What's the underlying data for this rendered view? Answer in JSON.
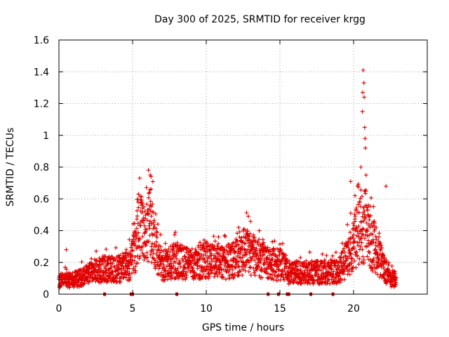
{
  "chart_data": {
    "type": "scatter",
    "title": "Day 300 of 2025, SRMTID for receiver krgg",
    "xlabel": "GPS time / hours",
    "ylabel": "SRMTID / TECUs",
    "xlim": [
      0,
      25
    ],
    "ylim": [
      0,
      1.6
    ],
    "xticks": [
      0,
      5,
      10,
      15,
      20
    ],
    "xtick_labels": [
      "0",
      "5",
      "10",
      "15",
      "20"
    ],
    "yticks": [
      0,
      0.2,
      0.4,
      0.6,
      0.8,
      1,
      1.2,
      1.4,
      1.6
    ],
    "ytick_labels": [
      "0",
      "0.2",
      "0.4",
      "0.6",
      "0.8",
      "1",
      "1.2",
      "1.4",
      "1.6"
    ],
    "grid": true,
    "marker": "+",
    "color": "#e00000",
    "x_range_of_data": [
      0,
      22.9
    ],
    "baseline_markers_x": [
      3.1,
      4.9,
      5.0,
      8.0,
      14.2,
      14.9,
      15.5,
      15.6,
      17.1,
      18.6
    ],
    "series": [
      {
        "name": "SRMTID",
        "profile": [
          [
            0.0,
            0.09
          ],
          [
            1.0,
            0.09
          ],
          [
            2.0,
            0.13
          ],
          [
            3.0,
            0.16
          ],
          [
            4.0,
            0.16
          ],
          [
            4.8,
            0.19
          ],
          [
            5.2,
            0.3
          ],
          [
            5.5,
            0.5
          ],
          [
            5.8,
            0.35
          ],
          [
            6.2,
            0.45
          ],
          [
            6.6,
            0.28
          ],
          [
            7.0,
            0.18
          ],
          [
            8.0,
            0.22
          ],
          [
            9.0,
            0.19
          ],
          [
            10.0,
            0.22
          ],
          [
            11.0,
            0.2
          ],
          [
            12.0,
            0.22
          ],
          [
            12.6,
            0.28
          ],
          [
            13.2,
            0.25
          ],
          [
            14.0,
            0.2
          ],
          [
            15.0,
            0.19
          ],
          [
            15.6,
            0.14
          ],
          [
            17.0,
            0.14
          ],
          [
            18.0,
            0.14
          ],
          [
            19.0,
            0.15
          ],
          [
            19.5,
            0.22
          ],
          [
            20.0,
            0.33
          ],
          [
            20.5,
            0.45
          ],
          [
            21.0,
            0.35
          ],
          [
            21.5,
            0.3
          ],
          [
            22.0,
            0.18
          ],
          [
            22.5,
            0.1
          ],
          [
            22.9,
            0.1
          ]
        ],
        "peaks": [
          [
            0.5,
            0.28
          ],
          [
            5.4,
            0.63
          ],
          [
            6.2,
            0.75
          ],
          [
            6.25,
            0.74
          ],
          [
            7.9,
            0.39
          ],
          [
            10.0,
            0.33
          ],
          [
            12.2,
            0.42
          ],
          [
            12.7,
            0.38
          ],
          [
            19.8,
            0.71
          ],
          [
            20.1,
            0.62
          ],
          [
            20.5,
            0.8
          ],
          [
            20.6,
            1.15
          ],
          [
            20.62,
            1.27
          ],
          [
            20.65,
            1.41
          ],
          [
            20.7,
            1.33
          ],
          [
            20.72,
            1.24
          ],
          [
            20.75,
            1.05
          ],
          [
            20.78,
            0.98
          ],
          [
            20.8,
            0.92
          ],
          [
            20.85,
            0.75
          ],
          [
            21.0,
            0.56
          ],
          [
            22.2,
            0.68
          ]
        ]
      }
    ]
  }
}
